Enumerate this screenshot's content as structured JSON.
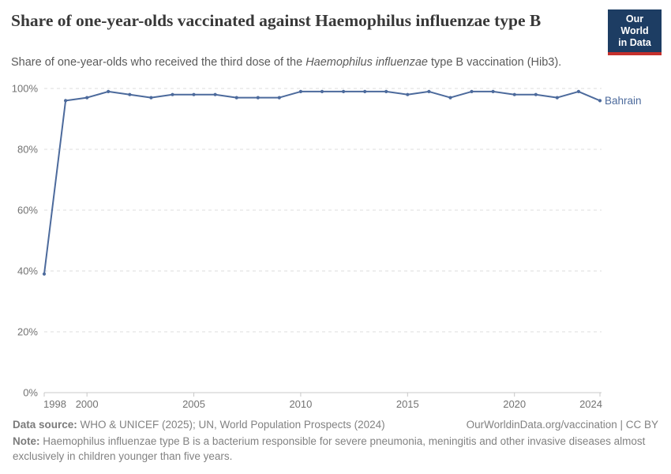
{
  "header": {
    "title": "Share of one-year-olds vaccinated against Haemophilus influenzae type B",
    "subtitle_prefix": "Share of one-year-olds who received the third dose of the ",
    "subtitle_italic": "Haemophilus influenzae",
    "subtitle_suffix": " type B vaccination (Hib3).",
    "logo": {
      "line1": "Our World",
      "line2": "in Data",
      "bg_color": "#1d3d63",
      "bar_color": "#c5302c"
    }
  },
  "chart_data": {
    "type": "line",
    "title": "Share of one-year-olds vaccinated against Haemophilus influenzae type B",
    "xlabel": "",
    "ylabel": "",
    "xlim": [
      1998,
      2024
    ],
    "ylim": [
      0,
      100
    ],
    "x": [
      1998,
      1999,
      2000,
      2001,
      2002,
      2003,
      2004,
      2005,
      2006,
      2007,
      2008,
      2009,
      2010,
      2011,
      2012,
      2013,
      2014,
      2015,
      2016,
      2017,
      2018,
      2019,
      2020,
      2021,
      2022,
      2023,
      2024
    ],
    "series": [
      {
        "name": "Bahrain",
        "color": "#4c6a9c",
        "values": [
          39,
          96,
          97,
          99,
          98,
          97,
          98,
          98,
          98,
          97,
          97,
          97,
          99,
          99,
          99,
          99,
          99,
          98,
          99,
          97,
          99,
          99,
          98,
          98,
          97,
          99,
          96
        ]
      }
    ],
    "x_ticks": [
      1998,
      2000,
      2005,
      2010,
      2015,
      2020,
      2024
    ],
    "y_ticks": [
      0,
      20,
      40,
      60,
      80,
      100
    ],
    "y_tick_suffix": "%",
    "grid": "horizontal-dashed",
    "legend_position": "end-of-line-label",
    "end_label": "Bahrain",
    "colors": {
      "gridline": "#dcdcdc",
      "axis": "#c8c8c8",
      "tick_label": "#737373"
    }
  },
  "footer": {
    "data_source_label": "Data source:",
    "data_source_text": " WHO & UNICEF (2025); UN, World Population Prospects (2024)",
    "attribution": "OurWorldinData.org/vaccination | CC BY",
    "note_label": "Note:",
    "note_text": " Haemophilus influenzae type B is a bacterium responsible for severe pneumonia, meningitis and other invasive diseases almost exclusively in children younger than five years."
  }
}
